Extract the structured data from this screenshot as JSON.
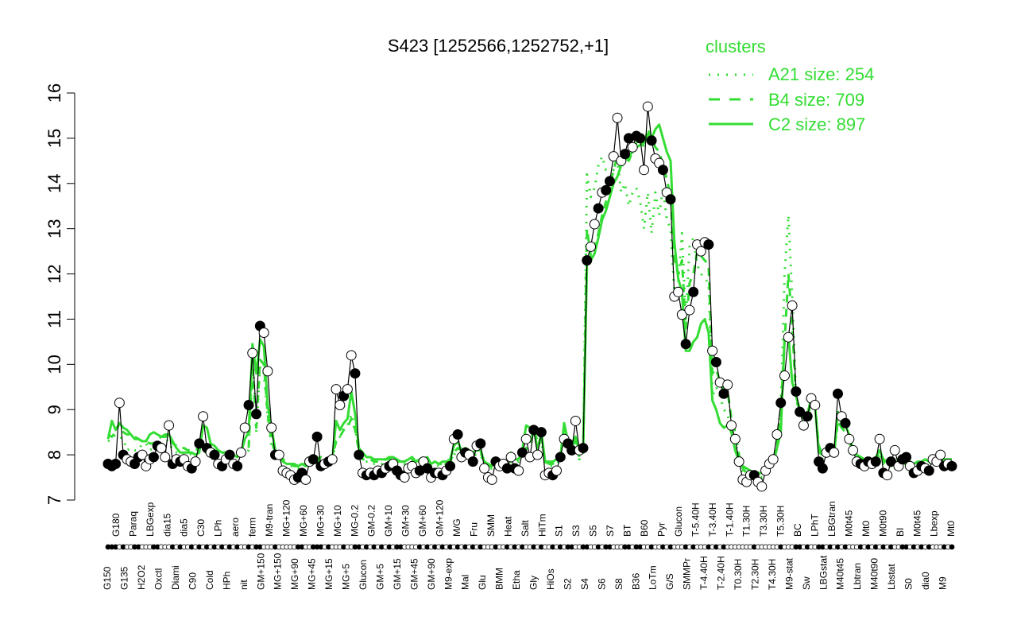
{
  "chart_data": {
    "type": "line",
    "title": "S423 [1252566,1252752,+1]",
    "xlabel": "",
    "ylabel": "",
    "ylim": [
      7,
      16
    ],
    "yticks": [
      7,
      8,
      9,
      10,
      11,
      12,
      13,
      14,
      15,
      16
    ],
    "grid": false,
    "legend": {
      "title": "clusters",
      "placement": "top-right",
      "entries": [
        {
          "label": "A21 size: 254",
          "style": "dotted",
          "color": "#33dd33"
        },
        {
          "label": "B4 size: 709",
          "style": "dashed",
          "color": "#33dd33"
        },
        {
          "label": "C2 size: 897",
          "style": "solid",
          "color": "#33dd33"
        }
      ]
    },
    "x_tick_labels": [
      "G150",
      "G180",
      "G135",
      "Paraq",
      "H2O2",
      "LBGexp",
      "Oxctl",
      "dia15",
      "Diami",
      "dia5",
      "C90",
      "C30",
      "Cold",
      "LPh",
      "HPh",
      "aero",
      "nit",
      "ferm",
      "GM+150",
      "M9-tran",
      "MG+150",
      "MG+120",
      "MG+90",
      "MG+60",
      "MG+45",
      "MG+30",
      "MG+15",
      "MG+10",
      "MG+5",
      "MG-0.2",
      "Glucon",
      "GM-0.2",
      "GM+5",
      "GM+10",
      "GM+15",
      "GM+30",
      "GM+45",
      "GM+60",
      "GM+90",
      "GM+120",
      "M9-exp",
      "M/G",
      "Mal",
      "Fru",
      "Glu",
      "SMM",
      "BMM",
      "Heat",
      "Etha",
      "Salt",
      "Gly",
      "HiTm",
      "HiOs",
      "S1",
      "S2",
      "S3",
      "S4",
      "S5",
      "S6",
      "S7",
      "S8",
      "BT",
      "B36",
      "B60",
      "LoTm",
      "Pyr",
      "G/S",
      "Glucon",
      "SMMPr",
      "T-5.40H",
      "T-4.40H",
      "T-3.40H",
      "T-2.40H",
      "T-1.40H",
      "T0.30H",
      "T1.30H",
      "T2.30H",
      "T3.30H",
      "T4.30H",
      "T5.30H",
      "M9-stat",
      "BC",
      "Sw",
      "LPhT",
      "LBGstat",
      "LBGtran",
      "M40t45",
      "M0t45",
      "Lbtran",
      "Mt0",
      "M40t90",
      "M0t90",
      "Lbstat",
      "BI",
      "S0",
      "M0t45",
      "dia0",
      "Lbexp",
      "M9",
      "Mt0"
    ],
    "series": [
      {
        "name": "",
        "color": "#000000",
        "marker_style": "mixed-filled-open",
        "values": [
          7.8,
          7.75,
          7.8,
          9.15,
          8.0,
          7.9,
          7.85,
          7.8,
          7.95,
          8.0,
          7.75,
          7.9,
          7.95,
          8.2,
          8.15,
          7.95,
          8.65,
          7.8,
          7.9,
          7.85,
          7.9,
          7.75,
          7.7,
          7.85,
          8.25,
          8.85,
          8.15,
          8.05,
          8.0,
          7.8,
          7.75,
          7.9,
          8.0,
          7.8,
          7.75,
          8.05,
          8.6,
          9.1,
          10.25,
          8.9,
          10.85,
          10.7,
          9.85,
          8.6,
          8.0,
          8.0,
          7.65,
          7.6,
          7.55,
          7.45,
          7.5,
          7.6,
          7.45,
          7.85,
          7.9,
          8.4,
          7.75,
          7.8,
          7.85,
          7.9,
          9.45,
          9.1,
          9.3,
          9.45,
          10.2,
          9.8,
          8.0,
          7.6,
          7.55,
          7.6,
          7.55,
          7.65,
          7.6,
          7.7,
          7.75,
          7.8,
          7.65,
          7.55,
          7.5,
          7.7,
          7.75,
          7.6,
          7.65,
          7.85,
          7.7,
          7.5,
          7.6,
          7.6,
          7.55,
          7.65,
          7.75,
          8.35,
          8.45,
          7.95,
          8.05,
          8.0,
          7.85,
          8.2,
          8.25,
          7.7,
          7.5,
          7.45,
          7.85,
          7.75,
          7.8,
          7.7,
          7.95,
          7.7,
          7.65,
          8.05,
          8.35,
          7.95,
          8.55,
          8.0,
          8.5,
          7.55,
          7.6,
          7.55,
          7.65,
          7.95,
          8.35,
          8.25,
          8.1,
          8.75,
          8.1,
          8.15,
          12.3,
          12.6,
          13.1,
          13.45,
          13.8,
          13.85,
          14.05,
          14.6,
          15.45,
          14.5,
          14.65,
          15.0,
          14.8,
          15.05,
          15.0,
          14.3,
          15.7,
          14.95,
          14.55,
          14.45,
          14.3,
          13.8,
          13.65,
          11.5,
          11.6,
          11.1,
          10.45,
          11.2,
          11.6,
          12.65,
          12.5,
          12.7,
          12.65,
          10.3,
          10.05,
          9.6,
          9.35,
          9.55,
          8.65,
          8.35,
          7.85,
          7.45,
          7.4,
          7.55,
          7.55,
          7.4,
          7.3,
          7.65,
          7.8,
          7.9,
          8.45,
          9.15,
          9.75,
          10.6,
          11.3,
          9.4,
          8.95,
          8.65,
          8.85,
          9.25,
          9.1,
          7.85,
          7.7,
          8.05,
          8.15,
          8.05,
          9.35,
          8.85,
          8.7,
          8.35,
          8.1,
          7.85,
          7.8,
          7.75,
          7.85,
          7.8,
          7.85,
          8.35,
          7.6,
          7.55,
          7.85,
          8.1,
          7.75,
          7.9,
          7.95,
          7.75,
          7.6,
          7.65,
          7.75,
          7.7,
          7.65,
          7.9,
          7.85,
          8.0,
          7.75,
          7.8,
          7.75
        ],
        "open_marker_indices": [
          3,
          5,
          6,
          9,
          10,
          11,
          14,
          15,
          16,
          18,
          20,
          21,
          23,
          25,
          27,
          29,
          31,
          33,
          35,
          36,
          38,
          41,
          42,
          43,
          45,
          46,
          47,
          48,
          49,
          52,
          53,
          57,
          59,
          60,
          61,
          63,
          64,
          67,
          69,
          71,
          73,
          75,
          78,
          79,
          80,
          81,
          83,
          85,
          87,
          89,
          91,
          93,
          95,
          97,
          99,
          100,
          101,
          103,
          104,
          106,
          108,
          110,
          111,
          113,
          115,
          116,
          118,
          120,
          123,
          124,
          127,
          128,
          130,
          133,
          134,
          135,
          138,
          141,
          142,
          144,
          145,
          147,
          149,
          150,
          151,
          153,
          155,
          156,
          157,
          159,
          161,
          163,
          164,
          165,
          166,
          167,
          168,
          169,
          171,
          172,
          173,
          174,
          175,
          176,
          178,
          179,
          180,
          183,
          185,
          186,
          189,
          191,
          193,
          195,
          196,
          197,
          199,
          201,
          203,
          205,
          207,
          208,
          211,
          213,
          215,
          217,
          218,
          219,
          221,
          223,
          225,
          227
        ]
      },
      {
        "name": "A21 size: 254",
        "color": "#33dd33",
        "style": "dotted",
        "values": [
          8.3,
          8.35,
          8.45,
          8.4,
          8.35,
          8.1,
          8.15,
          8.1,
          8.1,
          8.25,
          8.25,
          8.1,
          8.15,
          8.1,
          8.2,
          8.35,
          8.3,
          8.1,
          8.05,
          8.0,
          8.0,
          8.05,
          8.0,
          8.0,
          8.05,
          8.05,
          8.05,
          8.1,
          8.1,
          8.0,
          8.05,
          8.0,
          8.0,
          8.0,
          8.0,
          8.0,
          8.05,
          8.1,
          10.3,
          8.5,
          9.95,
          9.8,
          8.8,
          8.2,
          8.0,
          7.95,
          7.85,
          7.8,
          7.75,
          7.75,
          7.7,
          7.75,
          7.75,
          7.85,
          7.9,
          7.85,
          7.9,
          7.85,
          7.85,
          7.9,
          8.3,
          8.4,
          8.6,
          8.65,
          8.9,
          8.6,
          8.05,
          7.85,
          7.85,
          7.85,
          7.8,
          7.8,
          7.8,
          7.85,
          7.85,
          7.85,
          7.8,
          7.8,
          7.8,
          7.8,
          7.85,
          7.8,
          7.85,
          7.8,
          7.85,
          7.75,
          7.8,
          7.75,
          7.75,
          7.8,
          7.8,
          8.0,
          8.1,
          8.05,
          8.05,
          8.05,
          8.0,
          8.0,
          8.0,
          7.8,
          7.7,
          7.7,
          7.8,
          7.75,
          7.75,
          7.75,
          7.85,
          7.85,
          7.85,
          7.95,
          8.1,
          8.2,
          8.45,
          8.2,
          8.3,
          7.8,
          7.75,
          7.75,
          7.8,
          7.9,
          8.6,
          8.35,
          8.2,
          8.3,
          7.9,
          8.0,
          14.2,
          13.7,
          13.9,
          14.4,
          14.6,
          14.3,
          14.3,
          14.3,
          14.5,
          13.8,
          14.0,
          13.5,
          13.8,
          13.9,
          13.6,
          13.0,
          13.8,
          12.9,
          13.8,
          13.3,
          13.9,
          13.2,
          13.0,
          11.6,
          11.8,
          12.9,
          11.0,
          12.6,
          12.8,
          12.2,
          12.0,
          11.9,
          11.8,
          9.3,
          9.5,
          9.3,
          9.0,
          8.9,
          8.5,
          8.3,
          7.9,
          7.6,
          7.5,
          7.5,
          7.5,
          7.55,
          7.5,
          7.6,
          7.7,
          7.8,
          8.3,
          9.0,
          12.0,
          13.3,
          11.5,
          9.3,
          9.0,
          8.7,
          8.7,
          9.3,
          9.1,
          8.1,
          7.9,
          8.0,
          8.0,
          8.0,
          8.7,
          8.6,
          8.5,
          8.3,
          8.0,
          7.9,
          7.8,
          7.8,
          7.8,
          7.8,
          7.85,
          8.0,
          7.8,
          7.75,
          7.75,
          7.8,
          7.75,
          7.8,
          7.8,
          7.75,
          7.7,
          7.75,
          7.75,
          7.8,
          7.75,
          7.8,
          7.8,
          7.85,
          7.8,
          7.8,
          7.85
        ]
      },
      {
        "name": "B4 size: 709",
        "color": "#33dd33",
        "style": "dashed",
        "values": [
          8.45,
          8.4,
          8.5,
          8.7,
          8.5,
          8.45,
          8.45,
          8.4,
          8.35,
          8.3,
          8.3,
          8.25,
          8.25,
          8.35,
          8.4,
          8.4,
          8.4,
          8.25,
          8.2,
          8.15,
          8.15,
          8.1,
          8.1,
          8.1,
          8.15,
          8.2,
          8.15,
          8.1,
          8.1,
          8.05,
          8.05,
          8.05,
          8.05,
          8.05,
          8.05,
          8.05,
          8.1,
          8.15,
          10.0,
          8.6,
          10.1,
          10.0,
          8.9,
          8.3,
          8.05,
          8.0,
          7.9,
          7.85,
          7.8,
          7.8,
          7.75,
          7.8,
          7.8,
          7.9,
          7.95,
          7.9,
          7.95,
          7.9,
          7.9,
          7.95,
          8.3,
          8.4,
          8.55,
          8.6,
          8.8,
          8.55,
          8.1,
          7.9,
          7.9,
          7.9,
          7.85,
          7.85,
          7.85,
          7.9,
          7.9,
          7.9,
          7.85,
          7.85,
          7.85,
          7.85,
          7.9,
          7.85,
          7.9,
          7.85,
          7.9,
          7.8,
          7.85,
          7.8,
          7.8,
          7.85,
          7.85,
          8.05,
          8.15,
          8.1,
          8.1,
          8.1,
          8.05,
          8.05,
          8.05,
          7.85,
          7.75,
          7.75,
          7.85,
          7.8,
          7.8,
          7.8,
          7.9,
          7.9,
          7.9,
          8.0,
          8.15,
          8.25,
          8.55,
          8.3,
          8.4,
          7.85,
          7.8,
          7.8,
          7.85,
          7.95,
          8.5,
          8.35,
          8.2,
          8.3,
          7.95,
          8.05,
          13.0,
          12.4,
          12.6,
          12.9,
          13.3,
          13.6,
          13.9,
          14.3,
          14.6,
          14.3,
          14.6,
          14.5,
          14.7,
          14.9,
          15.0,
          14.8,
          15.2,
          15.0,
          14.8,
          14.7,
          14.4,
          14.1,
          13.7,
          12.3,
          12.0,
          12.3,
          10.8,
          11.8,
          12.0,
          12.5,
          12.4,
          12.3,
          12.2,
          9.8,
          9.9,
          9.6,
          9.4,
          9.4,
          8.8,
          8.5,
          8.0,
          7.7,
          7.6,
          7.6,
          7.6,
          7.6,
          7.6,
          7.65,
          7.75,
          7.85,
          8.3,
          9.0,
          10.5,
          12.0,
          10.9,
          9.2,
          9.0,
          8.8,
          8.8,
          9.2,
          9.1,
          8.2,
          8.0,
          8.05,
          8.05,
          8.05,
          8.75,
          8.6,
          8.5,
          8.3,
          8.05,
          7.95,
          7.9,
          7.85,
          7.85,
          7.85,
          7.9,
          8.05,
          7.85,
          7.8,
          7.8,
          7.85,
          7.8,
          7.85,
          7.85,
          7.8,
          7.75,
          7.8,
          7.8,
          7.85,
          7.8,
          7.85,
          7.85,
          7.9,
          7.85,
          7.85,
          7.9
        ]
      },
      {
        "name": "C2 size: 897",
        "color": "#33dd33",
        "style": "solid",
        "values": [
          8.35,
          8.75,
          8.55,
          8.7,
          8.6,
          8.55,
          8.45,
          8.35,
          8.35,
          8.3,
          8.3,
          8.45,
          8.5,
          8.45,
          8.4,
          8.45,
          8.45,
          8.3,
          8.15,
          8.05,
          8.05,
          8.05,
          8.05,
          8.0,
          8.05,
          8.65,
          8.6,
          8.25,
          8.2,
          8.1,
          8.05,
          8.05,
          8.0,
          8.0,
          7.95,
          8.05,
          8.35,
          8.5,
          10.45,
          9.8,
          10.55,
          10.4,
          9.1,
          8.6,
          8.1,
          7.95,
          7.85,
          7.8,
          7.8,
          7.75,
          7.75,
          7.8,
          7.75,
          7.8,
          7.85,
          7.95,
          7.85,
          7.85,
          7.9,
          7.9,
          8.75,
          8.55,
          8.7,
          8.8,
          9.4,
          8.9,
          8.15,
          8.05,
          7.95,
          7.95,
          7.9,
          7.9,
          7.9,
          7.9,
          7.95,
          7.95,
          7.9,
          7.85,
          7.85,
          7.9,
          7.95,
          7.85,
          7.9,
          7.9,
          7.95,
          7.8,
          7.85,
          7.8,
          7.85,
          7.85,
          7.9,
          8.2,
          8.3,
          8.1,
          8.15,
          8.1,
          8.05,
          8.1,
          8.1,
          7.85,
          7.8,
          7.75,
          7.9,
          7.85,
          7.85,
          7.85,
          8.05,
          7.9,
          7.9,
          8.1,
          8.65,
          8.6,
          8.6,
          8.1,
          8.5,
          7.85,
          7.85,
          7.85,
          7.9,
          7.95,
          8.7,
          8.3,
          8.25,
          8.4,
          8.05,
          8.1,
          12.2,
          12.3,
          12.45,
          12.8,
          13.2,
          13.4,
          13.7,
          14.0,
          14.15,
          14.4,
          14.5,
          14.6,
          14.7,
          14.8,
          14.85,
          14.9,
          15.1,
          15.0,
          15.2,
          15.3,
          15.0,
          14.7,
          14.5,
          12.7,
          11.9,
          11.6,
          10.3,
          10.3,
          10.5,
          10.6,
          10.9,
          11.0,
          10.7,
          9.2,
          9.0,
          8.7,
          8.6,
          8.65,
          8.5,
          8.1,
          7.85,
          7.75,
          7.7,
          7.65,
          7.6,
          7.6,
          7.6,
          7.7,
          7.75,
          7.8,
          8.15,
          8.5,
          10.6,
          10.65,
          9.6,
          9.3,
          9.0,
          8.8,
          8.9,
          9.25,
          9.1,
          8.05,
          8.0,
          8.0,
          8.0,
          8.0,
          8.95,
          8.7,
          8.65,
          8.45,
          8.1,
          8.0,
          7.95,
          7.9,
          7.9,
          7.9,
          7.95,
          8.1,
          7.9,
          7.85,
          7.85,
          7.85,
          7.85,
          7.9,
          7.9,
          7.85,
          7.8,
          7.85,
          7.85,
          7.9,
          7.85,
          7.9,
          7.9,
          7.95,
          7.9,
          7.9,
          7.9
        ]
      }
    ]
  }
}
